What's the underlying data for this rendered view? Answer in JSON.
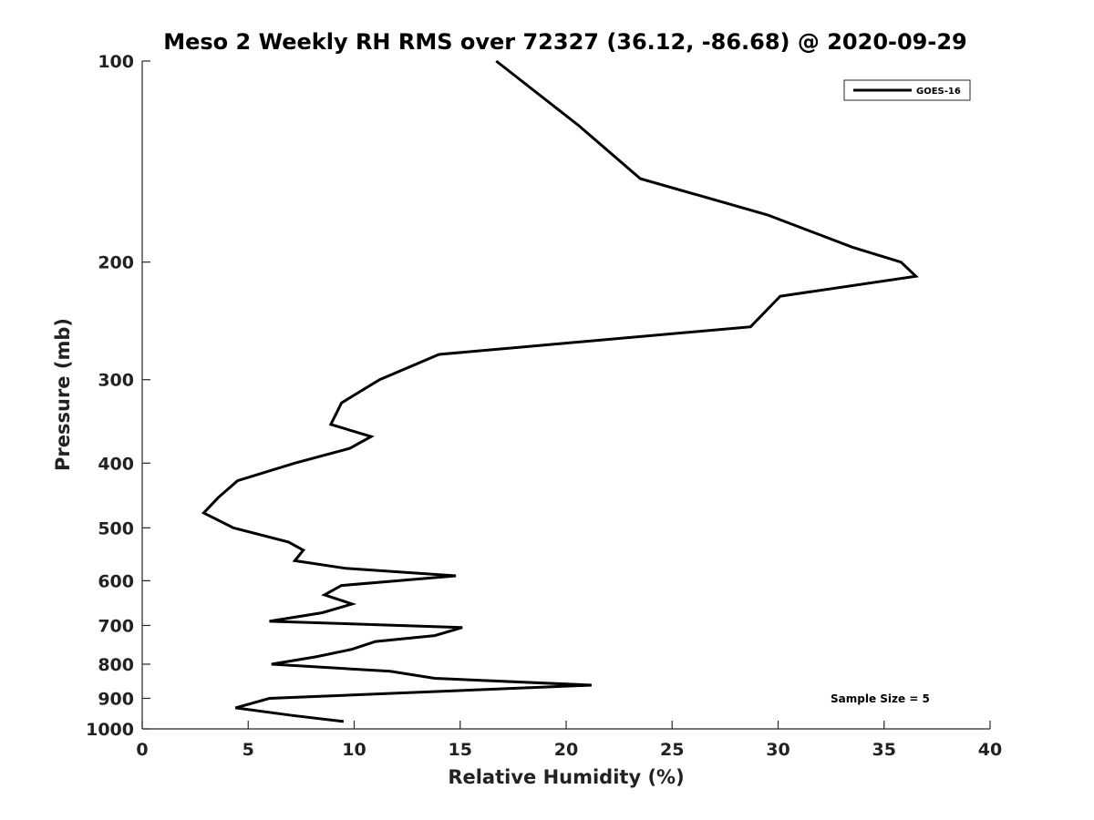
{
  "chart_data": {
    "type": "line",
    "title": "Meso 2 Weekly RH RMS over 72327 (36.12, -86.68) @ 2020-09-29",
    "xlabel": "Relative Humidity (%)",
    "ylabel": "Pressure (mb)",
    "xlim": [
      0,
      40
    ],
    "ylim": [
      100,
      1000
    ],
    "yscale": "log",
    "yreversed": true,
    "xticks": [
      0,
      5,
      10,
      15,
      20,
      25,
      30,
      35,
      40
    ],
    "yticks": [
      100,
      200,
      300,
      400,
      500,
      600,
      700,
      800,
      900,
      1000
    ],
    "grid": false,
    "legend_position": "top-right",
    "annotation": "Sample Size = 5",
    "color": "#000000",
    "series": [
      {
        "name": "GOES-16",
        "x": [
          16.7,
          20.6,
          23.5,
          29.5,
          33.5,
          35.8,
          36.5,
          30.1,
          28.7,
          14.0,
          11.2,
          9.4,
          8.9,
          10.8,
          9.8,
          7.2,
          4.5,
          3.6,
          2.9,
          4.3,
          6.9,
          7.6,
          7.2,
          9.6,
          14.8,
          9.4,
          8.6,
          9.9,
          8.5,
          6.0,
          15.1,
          13.8,
          11.0,
          9.9,
          8.2,
          6.1,
          11.7,
          13.8,
          21.2,
          6.0,
          4.4,
          7.1,
          9.5
        ],
        "y": [
          100,
          125,
          150,
          170,
          190,
          200,
          210,
          225,
          250,
          275,
          300,
          325,
          350,
          365,
          380,
          400,
          425,
          450,
          475,
          500,
          525,
          540,
          560,
          575,
          590,
          610,
          630,
          650,
          670,
          690,
          705,
          725,
          740,
          760,
          780,
          800,
          820,
          840,
          860,
          900,
          930,
          955,
          975
        ]
      }
    ]
  }
}
